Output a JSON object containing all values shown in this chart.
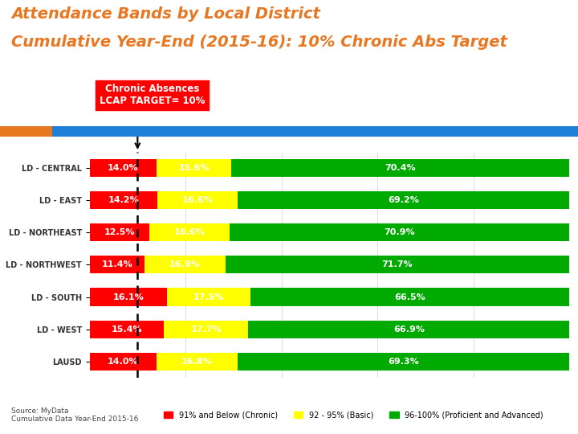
{
  "title_line1": "Attendance Bands by Local District",
  "title_line2": "Cumulative Year-End (2015-16): 10% Chronic Abs Target",
  "title_color": "#E87722",
  "categories": [
    "LD - CENTRAL",
    "LD - EAST",
    "LD - NORTHEAST",
    "LD - NORTHWEST",
    "LD - SOUTH",
    "LD - WEST",
    "LAUSD"
  ],
  "chronic": [
    14.0,
    14.2,
    12.5,
    11.4,
    16.1,
    15.4,
    14.0
  ],
  "basic": [
    15.6,
    16.6,
    16.6,
    16.9,
    17.5,
    17.7,
    16.8
  ],
  "proficient": [
    70.4,
    69.2,
    70.9,
    71.7,
    66.5,
    66.9,
    69.3
  ],
  "color_chronic": "#FF0000",
  "color_basic": "#FFFF00",
  "color_proficient": "#00AA00",
  "header_bar_orange": "#E87722",
  "header_bar_blue": "#1E7FD8",
  "annotation_box_color": "#FF0000",
  "annotation_text": "Chronic Absences\nLCAP TARGET= 10%",
  "annotation_text_color": "#FFFFFF",
  "target_line_x": 10.0,
  "legend_labels": [
    "91% and Below (Chronic)",
    "92 - 95% (Basic)",
    "96-100% (Proficient and Advanced)"
  ],
  "source_text": "Source: MyData\nCumulative Data Year-End 2015-16",
  "background_color": "#FFFFFF",
  "ylabel_fontsize": 7.0,
  "label_fontsize": 8.0
}
